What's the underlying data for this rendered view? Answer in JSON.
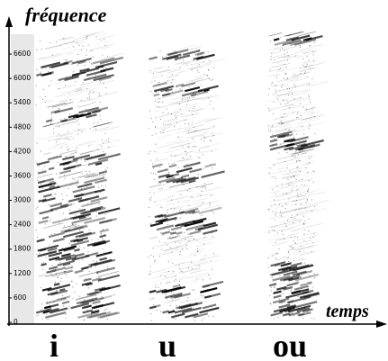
{
  "chart_data": {
    "type": "spectrogram",
    "y_label": "fréquence",
    "x_label": "temps",
    "categories": [
      "i",
      "u",
      "ou"
    ],
    "ylim": [
      0,
      7000
    ],
    "yticks": [
      0,
      600,
      1200,
      1800,
      2400,
      3000,
      3600,
      4200,
      4800,
      5400,
      6000,
      6600
    ]
  }
}
